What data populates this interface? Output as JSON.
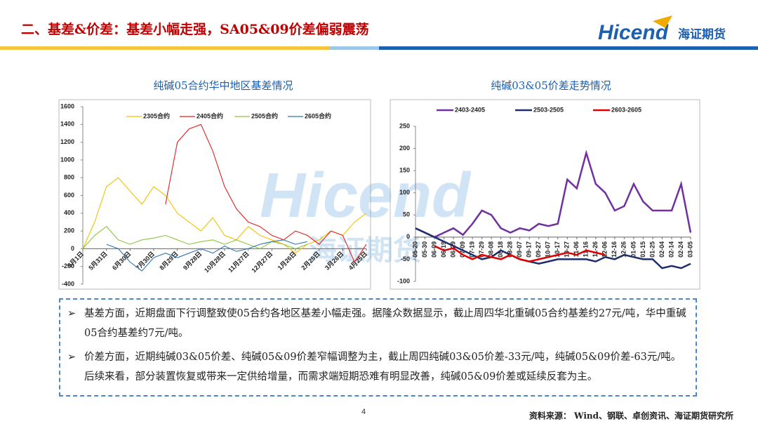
{
  "header": {
    "title": "二、基差&价差：基差小幅走强，SA05&09价差偏弱震荡",
    "logo": "Hicend",
    "logo_cn": "海证期货"
  },
  "watermark": {
    "latin": "Hicend",
    "cn": "海证期货"
  },
  "chart_data": [
    {
      "type": "line",
      "title": "纯碱05合约华中地区基差情况",
      "categories": [
        "5月1日",
        null,
        "5月31日",
        null,
        "6月30日",
        null,
        "7月30日",
        null,
        "8月29日",
        null,
        "9月28日",
        null,
        "10月28日",
        null,
        "11月27日",
        null,
        "12月27日",
        null,
        "1月26日",
        null,
        "2月25日",
        null,
        "3月26日",
        null,
        "4月25日"
      ],
      "series": [
        {
          "name": "2305合约",
          "color": "#f2c200",
          "values": [
            0,
            300,
            700,
            800,
            650,
            500,
            700,
            600,
            400,
            300,
            200,
            350,
            150,
            100,
            250,
            150,
            100,
            50,
            -50,
            50,
            100,
            200,
            150,
            300,
            400
          ]
        },
        {
          "name": "2405合约",
          "color": "#e02020",
          "values": [
            null,
            null,
            null,
            null,
            null,
            null,
            null,
            500,
            1200,
            1350,
            1400,
            1100,
            700,
            450,
            300,
            250,
            150,
            100,
            200,
            150,
            50,
            200,
            150,
            -150,
            50
          ]
        },
        {
          "name": "2505合约",
          "color": "#8dc63f",
          "values": [
            0,
            150,
            250,
            100,
            50,
            100,
            120,
            150,
            100,
            50,
            80,
            100,
            50,
            100,
            50,
            0,
            80,
            50,
            0,
            50,
            null,
            null,
            null,
            null,
            null
          ]
        },
        {
          "name": "2605合约",
          "color": "#2e75b6",
          "values": [
            null,
            null,
            50,
            0,
            -150,
            -250,
            -100,
            -50,
            -100,
            -50,
            0,
            -50,
            30,
            -30,
            0,
            50,
            80,
            100,
            50,
            80,
            null,
            null,
            null,
            null,
            null
          ]
        }
      ],
      "ylim": [
        -400,
        1600
      ],
      "yticks": [
        -400,
        -200,
        0,
        200,
        400,
        600,
        800,
        1000,
        1200,
        1400,
        1600
      ]
    },
    {
      "type": "line",
      "title": "纯碱03&05价差走势情况",
      "categories": [
        "05-20",
        "05-30",
        "06-09",
        "06-19",
        "06-29",
        "07-09",
        "07-19",
        "07-29",
        "08-08",
        "08-18",
        "08-28",
        "09-07",
        "09-17",
        "09-27",
        "10-07",
        "10-17",
        "10-27",
        "11-06",
        "11-16",
        "11-26",
        "12-06",
        "12-16",
        "12-26",
        "01-05",
        "01-15",
        "01-25",
        "02-04",
        "02-14",
        "02-24",
        "03-05"
      ],
      "series": [
        {
          "name": "2403-2405",
          "color": "#7030a0",
          "values": [
            20,
            10,
            0,
            10,
            20,
            5,
            30,
            60,
            50,
            20,
            10,
            20,
            15,
            30,
            25,
            30,
            130,
            110,
            190,
            120,
            100,
            60,
            70,
            120,
            80,
            60,
            60,
            60,
            120,
            10
          ]
        },
        {
          "name": "2503-2505",
          "color": "#1f2d6b",
          "values": [
            20,
            10,
            0,
            -10,
            -20,
            -30,
            -40,
            -50,
            -45,
            -30,
            -40,
            -50,
            -55,
            -60,
            -55,
            -50,
            -50,
            -50,
            -50,
            -55,
            -45,
            -50,
            -40,
            -45,
            -50,
            -50,
            -70,
            -65,
            -70,
            -60
          ]
        },
        {
          "name": "2603-2605",
          "color": "#e00000",
          "values": [
            null,
            null,
            -20,
            -30,
            -25,
            -40,
            -50,
            -40,
            -45,
            -50,
            -40,
            -50,
            -55,
            -50,
            -45,
            -40,
            -35,
            -40,
            -30,
            -35,
            -40,
            null,
            null,
            null,
            null,
            null,
            null,
            null,
            null,
            null
          ]
        }
      ],
      "ylim": [
        -100,
        250
      ],
      "yticks": [
        -100,
        -50,
        0,
        50,
        100,
        150,
        200,
        250
      ]
    }
  ],
  "bullets": [
    "基差方面，近期盘面下行调整致使05合约各地区基差小幅走强。据隆众数据显示，截止周四华北重碱05合约基差约27元/吨，华中重碱05合约基差约7元/吨。",
    "价差方面，近期纯碱03&05价差、纯碱05&09价差窄幅调整为主，截止周四纯碱03&05价差-33元/吨，纯碱05&09价差-63元/吨。后续来看，部分装置恢复或带来一定供给增量，而需求端短期恐难有明显改善，纯碱05&09价差或延续反套为主。"
  ],
  "footer": {
    "page_number": "4",
    "source": "资料来源：  Wind、钢联、卓创资讯、海证期货研究所"
  }
}
